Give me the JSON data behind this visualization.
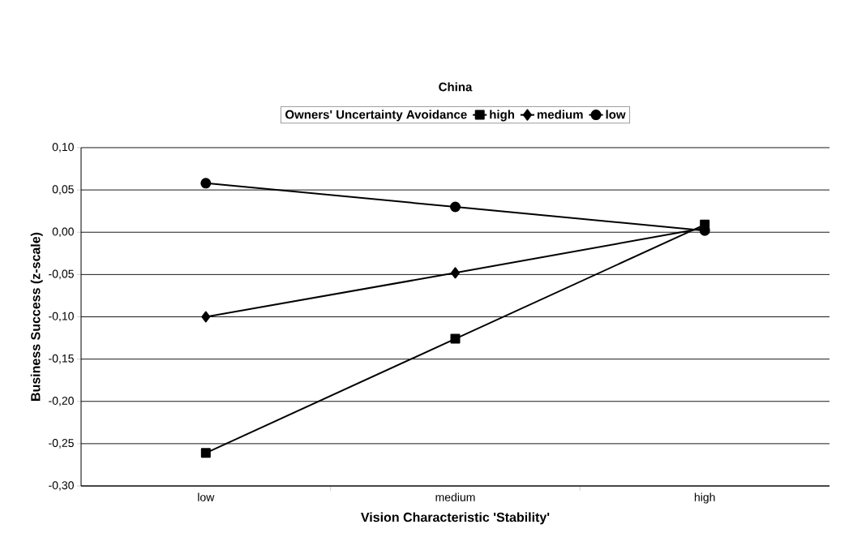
{
  "chart_data": {
    "type": "line",
    "title": "China",
    "xlabel": "Vision Characteristic 'Stability'",
    "ylabel": "Business Success (z-scale)",
    "legend_title": "Owners' Uncertainty Avoidance",
    "categories": [
      "low",
      "medium",
      "high"
    ],
    "series": [
      {
        "name": "high",
        "color": "#000000",
        "marker": "square",
        "values": [
          -0.261,
          -0.126,
          0.009
        ]
      },
      {
        "name": "medium",
        "color": "#000000",
        "marker": "diamond",
        "values": [
          -0.1,
          -0.048,
          0.005
        ]
      },
      {
        "name": "low",
        "color": "#000000",
        "marker": "circle",
        "values": [
          0.058,
          0.03,
          0.002
        ]
      }
    ],
    "ylim": [
      -0.3,
      0.1
    ],
    "yticks": [
      {
        "value": -0.3,
        "label": "-0,30"
      },
      {
        "value": -0.25,
        "label": "-0,25"
      },
      {
        "value": -0.2,
        "label": "-0,20"
      },
      {
        "value": -0.15,
        "label": "-0,15"
      },
      {
        "value": -0.1,
        "label": "-0,10"
      },
      {
        "value": -0.05,
        "label": "-0,05"
      },
      {
        "value": 0,
        "label": "0,00"
      },
      {
        "value": 0.05,
        "label": "0,05"
      },
      {
        "value": 0.1,
        "label": "0,10"
      }
    ],
    "grid": "y",
    "legend": "top",
    "line_style": "solid"
  }
}
